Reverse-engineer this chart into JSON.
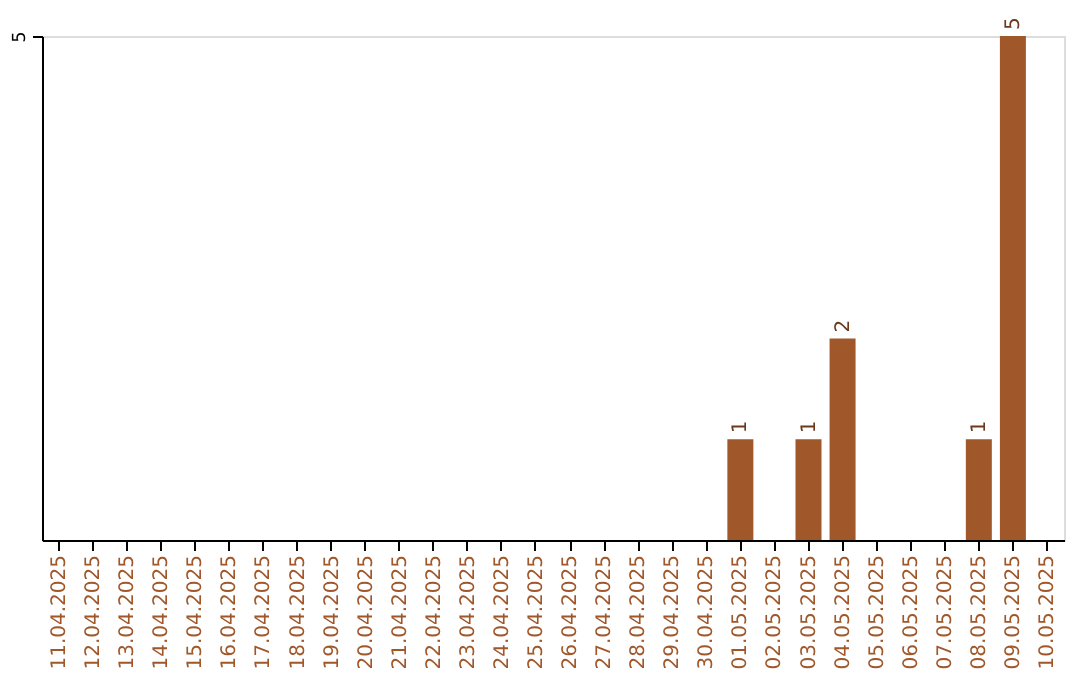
{
  "chart_data": {
    "type": "bar",
    "categories": [
      "11.04.2025",
      "12.04.2025",
      "13.04.2025",
      "14.04.2025",
      "15.04.2025",
      "16.04.2025",
      "17.04.2025",
      "18.04.2025",
      "19.04.2025",
      "20.04.2025",
      "21.04.2025",
      "22.04.2025",
      "23.04.2025",
      "24.04.2025",
      "25.04.2025",
      "26.04.2025",
      "27.04.2025",
      "28.04.2025",
      "29.04.2025",
      "30.04.2025",
      "01.05.2025",
      "02.05.2025",
      "03.05.2025",
      "04.05.2025",
      "05.05.2025",
      "06.05.2025",
      "07.05.2025",
      "08.05.2025",
      "09.05.2025",
      "10.05.2025"
    ],
    "values": [
      null,
      null,
      null,
      null,
      null,
      null,
      null,
      null,
      null,
      null,
      null,
      null,
      null,
      null,
      null,
      null,
      null,
      null,
      null,
      null,
      1,
      null,
      1,
      2,
      null,
      null,
      null,
      1,
      5,
      null
    ],
    "data_labels": true,
    "color": "#a0572a",
    "ylim": [
      0,
      5
    ],
    "yticks": [
      5
    ]
  }
}
